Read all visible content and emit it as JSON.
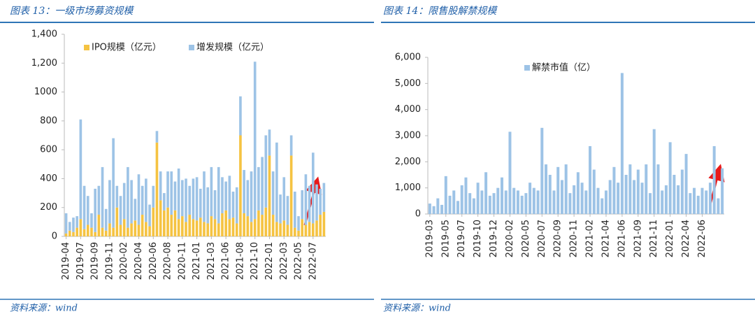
{
  "chart_data": [
    {
      "type": "stacked_bar",
      "title": "图表 13：一级市场募资规模",
      "source": "资料来源：wind",
      "categories": [
        "2019-04",
        null,
        null,
        null,
        "2019-07",
        null,
        null,
        null,
        "2019-09",
        null,
        null,
        null,
        "2019-11",
        null,
        null,
        null,
        "2020-02",
        null,
        null,
        null,
        "2020-04",
        null,
        null,
        null,
        "2020-06",
        null,
        null,
        null,
        "2020-08",
        null,
        null,
        null,
        "2020-11",
        null,
        null,
        null,
        "2021-01",
        null,
        null,
        null,
        "2021-03",
        null,
        null,
        null,
        "2021-06",
        null,
        null,
        null,
        "2021-08",
        null,
        null,
        null,
        "2021-10",
        null,
        null,
        null,
        "2022-01",
        null,
        null,
        null,
        "2022-03",
        null,
        null,
        null,
        "2022-05",
        null,
        null,
        null,
        "2022-07",
        null,
        null,
        null
      ],
      "series": [
        {
          "name": "IPO规模（亿元）",
          "color": "#f5c342",
          "values": [
            20,
            40,
            30,
            60,
            120,
            50,
            80,
            60,
            30,
            150,
            60,
            40,
            90,
            60,
            200,
            80,
            120,
            60,
            90,
            110,
            80,
            150,
            100,
            70,
            200,
            650,
            250,
            180,
            200,
            150,
            180,
            120,
            140,
            100,
            150,
            120,
            110,
            130,
            100,
            90,
            140,
            120,
            90,
            160,
            180,
            120,
            130,
            90,
            700,
            160,
            140,
            100,
            120,
            180,
            150,
            200,
            560,
            150,
            100,
            90,
            110,
            80,
            560,
            60,
            40,
            120,
            80,
            100,
            90,
            110,
            150,
            170
          ]
        },
        {
          "name": "增发规模（亿元）",
          "color": "#9dc3e6",
          "values": [
            140,
            60,
            100,
            80,
            690,
            300,
            200,
            100,
            300,
            200,
            420,
            150,
            300,
            620,
            150,
            200,
            250,
            420,
            300,
            150,
            350,
            200,
            300,
            150,
            150,
            80,
            200,
            120,
            250,
            300,
            200,
            350,
            250,
            300,
            200,
            280,
            300,
            200,
            350,
            250,
            340,
            200,
            390,
            250,
            200,
            300,
            180,
            250,
            270,
            300,
            250,
            350,
            1090,
            300,
            400,
            500,
            180,
            300,
            550,
            200,
            300,
            200,
            140,
            250,
            100,
            200,
            350,
            250,
            490,
            250,
            180,
            200
          ]
        }
      ],
      "ylim": [
        0,
        1400
      ],
      "yticks": [
        0,
        200,
        400,
        600,
        800,
        1000,
        {
          "value": 1200,
          "label": "1,200"
        },
        {
          "value": 1400,
          "label": "1,400"
        }
      ]
    },
    {
      "type": "bar",
      "title": "图表 14：限售股解禁规模",
      "source": "资料来源：wind",
      "categories": [
        "2019-03",
        null,
        null,
        null,
        "2019-05",
        null,
        null,
        null,
        "2019-07",
        null,
        null,
        null,
        "2019-10",
        null,
        null,
        null,
        "2019-12",
        null,
        null,
        null,
        "2020-02",
        null,
        null,
        null,
        "2020-05",
        null,
        null,
        null,
        "2020-07",
        null,
        null,
        null,
        "2020-09",
        null,
        null,
        null,
        "2020-11",
        null,
        null,
        null,
        "2021-02",
        null,
        null,
        null,
        "2021-04",
        null,
        null,
        null,
        "2021-06",
        null,
        null,
        null,
        "2021-09",
        null,
        null,
        null,
        "2021-11",
        null,
        null,
        null,
        "2022-01",
        null,
        null,
        null,
        "2022-04",
        null,
        null,
        null,
        "2022-06",
        null,
        null,
        null,
        null,
        null
      ],
      "series": [
        {
          "name": "解禁市值（亿）",
          "color": "#9dc3e6",
          "values": [
            400,
            300,
            600,
            350,
            1450,
            700,
            900,
            500,
            1100,
            1400,
            800,
            600,
            1200,
            900,
            1600,
            700,
            800,
            1000,
            1400,
            900,
            3150,
            1000,
            900,
            700,
            800,
            1200,
            1000,
            900,
            3300,
            1900,
            1500,
            900,
            1800,
            1300,
            1900,
            800,
            1100,
            1600,
            1200,
            900,
            2600,
            1700,
            1000,
            600,
            900,
            1300,
            1800,
            1200,
            5400,
            1500,
            1900,
            1300,
            1700,
            1200,
            1900,
            800,
            3250,
            1900,
            900,
            1100,
            2750,
            1500,
            1100,
            1700,
            2300,
            800,
            1000,
            700,
            1000,
            900,
            1200,
            2600,
            600,
            1750
          ]
        }
      ],
      "ylim": [
        0,
        6000
      ],
      "yticks": [
        0,
        {
          "value": 1000,
          "label": "1,000"
        },
        {
          "value": 2000,
          "label": "2,000"
        },
        {
          "value": 3000,
          "label": "3,000"
        },
        {
          "value": 4000,
          "label": "4,000"
        },
        {
          "value": 5000,
          "label": "5,000"
        },
        {
          "value": 6000,
          "label": "6,000"
        }
      ]
    }
  ]
}
